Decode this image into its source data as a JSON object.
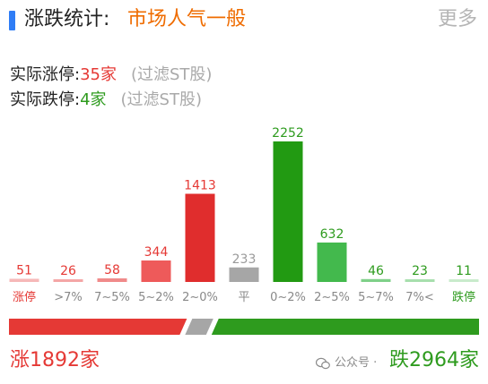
{
  "header": {
    "label": "涨跌统计:",
    "sentiment": "市场人气一般",
    "more": "更多"
  },
  "stats": {
    "limit_up_label": "实际涨停:",
    "limit_up_count": "35家",
    "limit_down_label": "实际跌停:",
    "limit_down_count": "4家",
    "filter_note": "(过滤ST股)"
  },
  "colors": {
    "rise": "#e53935",
    "rise_light": "#f08a8a",
    "flat": "#a6a6a6",
    "fall": "#2e9b1e",
    "fall_light": "#7fd089",
    "accent": "#2f7df6"
  },
  "chart_data": {
    "type": "bar",
    "categories": [
      "涨停",
      ">7%",
      "7~5%",
      "5~2%",
      "2~0%",
      "平",
      "0~2%",
      "2~5%",
      "5~7%",
      "7%<",
      "跌停"
    ],
    "values": [
      51,
      26,
      58,
      344,
      1413,
      233,
      2252,
      632,
      46,
      23,
      11
    ],
    "value_labels": [
      "51",
      "26",
      "58",
      "344",
      "1413",
      "233",
      "2252",
      "632",
      "46",
      "23",
      "11"
    ],
    "bar_colors": [
      "#f6b8b8",
      "#f4a6a6",
      "#f08a8a",
      "#ee5a5a",
      "#e02d2d",
      "#a6a6a6",
      "#229a12",
      "#43b94d",
      "#7fd089",
      "#a7dfad",
      "#c9ebcc"
    ],
    "label_colors": [
      "#e53935",
      "#e53935",
      "#e53935",
      "#e53935",
      "#e53935",
      "#9a9a9a",
      "#2e9b1e",
      "#2e9b1e",
      "#2e9b1e",
      "#2e9b1e",
      "#2e9b1e"
    ],
    "tick_colors": [
      "#e53935",
      "#888888",
      "#888888",
      "#888888",
      "#888888",
      "#888888",
      "#888888",
      "#888888",
      "#888888",
      "#888888",
      "#2e9b1e"
    ],
    "ylim": [
      0,
      2252
    ]
  },
  "breadth": {
    "rise_count": 1892,
    "flat_count": 233,
    "fall_count": 2964
  },
  "footer": {
    "rise_text": "涨1892家",
    "fall_text": "跌2964家",
    "watermark": "公众号 ·"
  }
}
